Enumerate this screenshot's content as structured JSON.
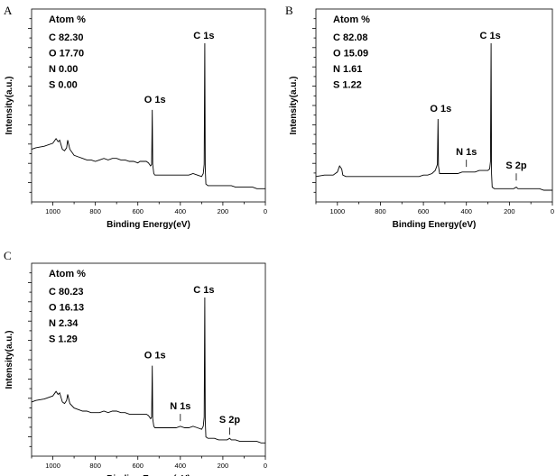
{
  "chart_data": [
    {
      "panel": "A",
      "type": "line",
      "xlabel": "Binding Energy(eV)",
      "ylabel": "Intensity(a.u.)",
      "xlim": [
        1100,
        0
      ],
      "x_ticks": [
        1000,
        800,
        600,
        400,
        200,
        0
      ],
      "grid": false,
      "box_title": "Atom %",
      "composition": [
        "C 82.30",
        "O 17.70",
        "N  0.00",
        "S  0.00"
      ],
      "peak_labels": [
        {
          "text": "C 1s",
          "x": 285,
          "y": 1.0
        },
        {
          "text": "O 1s",
          "x": 532,
          "y": 0.56
        }
      ],
      "series": [
        {
          "x": [
            1100,
            1080,
            1040,
            1000,
            985,
            975,
            968,
            955,
            945,
            935,
            930,
            920,
            900,
            880,
            860,
            840,
            820,
            800,
            780,
            760,
            740,
            720,
            700,
            680,
            660,
            640,
            620,
            600,
            590,
            580,
            570,
            560,
            550,
            540,
            535,
            532,
            530,
            525,
            520,
            500,
            480,
            460,
            440,
            420,
            400,
            380,
            360,
            340,
            320,
            300,
            292,
            288,
            285,
            283,
            280,
            270,
            260,
            240,
            220,
            200,
            180,
            160,
            140,
            120,
            100,
            80,
            60,
            40,
            20,
            0
          ],
          "y": [
            0.3,
            0.31,
            0.32,
            0.34,
            0.37,
            0.35,
            0.36,
            0.3,
            0.29,
            0.31,
            0.36,
            0.3,
            0.26,
            0.25,
            0.24,
            0.23,
            0.23,
            0.22,
            0.23,
            0.24,
            0.23,
            0.24,
            0.24,
            0.23,
            0.23,
            0.22,
            0.22,
            0.21,
            0.22,
            0.22,
            0.22,
            0.22,
            0.21,
            0.19,
            0.2,
            0.56,
            0.2,
            0.14,
            0.13,
            0.13,
            0.13,
            0.13,
            0.13,
            0.13,
            0.13,
            0.13,
            0.13,
            0.14,
            0.13,
            0.12,
            0.14,
            0.2,
            1.0,
            0.18,
            0.07,
            0.06,
            0.06,
            0.06,
            0.06,
            0.06,
            0.06,
            0.06,
            0.05,
            0.05,
            0.05,
            0.05,
            0.05,
            0.04,
            0.04,
            0.04
          ]
        }
      ]
    },
    {
      "panel": "B",
      "type": "line",
      "xlabel": "Binding Energy(eV)",
      "ylabel": "Intensity(a.u.)",
      "xlim": [
        1100,
        0
      ],
      "x_ticks": [
        1000,
        800,
        600,
        400,
        200,
        0
      ],
      "grid": false,
      "box_title": "Atom %",
      "composition": [
        "C  82.08",
        "O  15.09",
        "N  1.61",
        "S  1.22"
      ],
      "peak_labels": [
        {
          "text": "C 1s",
          "x": 285,
          "y": 1.0
        },
        {
          "text": "O 1s",
          "x": 532,
          "y": 0.5
        },
        {
          "text": "N 1s",
          "x": 400,
          "y": 0.16
        },
        {
          "text": "S 2p",
          "x": 168,
          "y": 0.07
        }
      ],
      "series": [
        {
          "x": [
            1100,
            1060,
            1020,
            1000,
            990,
            980,
            975,
            960,
            940,
            900,
            860,
            820,
            780,
            740,
            700,
            660,
            620,
            600,
            580,
            560,
            545,
            540,
            535,
            532,
            530,
            525,
            520,
            500,
            480,
            460,
            440,
            420,
            400,
            380,
            360,
            340,
            320,
            300,
            292,
            288,
            285,
            283,
            280,
            270,
            260,
            240,
            220,
            200,
            180,
            168,
            160,
            140,
            120,
            100,
            80,
            60,
            40,
            20,
            0
          ],
          "y": [
            0.12,
            0.13,
            0.13,
            0.15,
            0.19,
            0.17,
            0.13,
            0.12,
            0.12,
            0.12,
            0.12,
            0.12,
            0.12,
            0.12,
            0.12,
            0.12,
            0.12,
            0.13,
            0.13,
            0.14,
            0.16,
            0.18,
            0.2,
            0.5,
            0.19,
            0.14,
            0.14,
            0.14,
            0.14,
            0.14,
            0.14,
            0.15,
            0.15,
            0.15,
            0.15,
            0.16,
            0.16,
            0.16,
            0.17,
            0.22,
            1.0,
            0.14,
            0.05,
            0.04,
            0.04,
            0.04,
            0.04,
            0.04,
            0.04,
            0.05,
            0.04,
            0.04,
            0.04,
            0.04,
            0.04,
            0.04,
            0.03,
            0.03,
            0.03
          ]
        }
      ]
    },
    {
      "panel": "C",
      "type": "line",
      "xlabel": "Binding Energy(eV)",
      "ylabel": "Intensity(a.u.)",
      "xlim": [
        1100,
        0
      ],
      "x_ticks": [
        1000,
        800,
        600,
        400,
        200,
        0
      ],
      "grid": false,
      "box_title": "Atom %",
      "composition": [
        "C  80.23",
        "O  16.13",
        "N  2.34",
        "S  1.29"
      ],
      "peak_labels": [
        {
          "text": "C 1s",
          "x": 285,
          "y": 1.0
        },
        {
          "text": "O 1s",
          "x": 532,
          "y": 0.55
        },
        {
          "text": "N 1s",
          "x": 400,
          "y": 0.16
        },
        {
          "text": "S 2p",
          "x": 168,
          "y": 0.07
        }
      ],
      "series": [
        {
          "x": [
            1100,
            1080,
            1040,
            1000,
            985,
            975,
            968,
            955,
            945,
            935,
            930,
            920,
            900,
            880,
            860,
            840,
            820,
            800,
            780,
            760,
            740,
            720,
            700,
            680,
            660,
            640,
            620,
            600,
            590,
            580,
            570,
            560,
            550,
            540,
            535,
            532,
            530,
            525,
            520,
            500,
            480,
            460,
            440,
            420,
            400,
            380,
            360,
            340,
            320,
            300,
            292,
            288,
            285,
            283,
            280,
            270,
            260,
            240,
            220,
            200,
            180,
            168,
            160,
            140,
            120,
            100,
            80,
            60,
            40,
            20,
            0
          ],
          "y": [
            0.31,
            0.32,
            0.33,
            0.35,
            0.38,
            0.36,
            0.37,
            0.31,
            0.3,
            0.32,
            0.36,
            0.3,
            0.27,
            0.26,
            0.25,
            0.25,
            0.24,
            0.24,
            0.24,
            0.25,
            0.24,
            0.25,
            0.25,
            0.24,
            0.24,
            0.23,
            0.23,
            0.23,
            0.23,
            0.23,
            0.23,
            0.23,
            0.22,
            0.2,
            0.21,
            0.55,
            0.2,
            0.15,
            0.14,
            0.14,
            0.14,
            0.14,
            0.14,
            0.14,
            0.15,
            0.14,
            0.14,
            0.15,
            0.14,
            0.13,
            0.15,
            0.21,
            1.0,
            0.19,
            0.08,
            0.07,
            0.07,
            0.07,
            0.06,
            0.06,
            0.06,
            0.07,
            0.06,
            0.06,
            0.05,
            0.05,
            0.05,
            0.05,
            0.05,
            0.04,
            0.04
          ]
        }
      ]
    }
  ]
}
